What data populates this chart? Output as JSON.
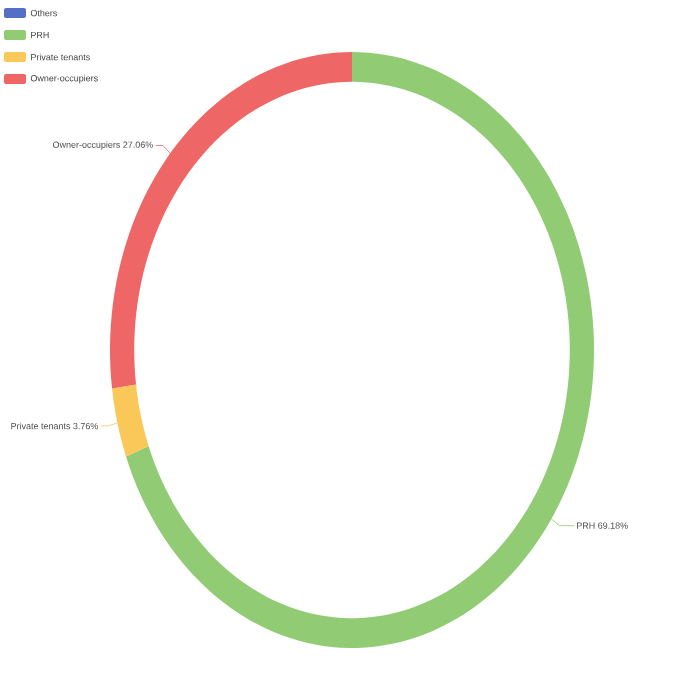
{
  "chart_data": {
    "type": "donut",
    "categories": [
      "Others",
      "PRH",
      "Private tenants",
      "Owner-occupiers"
    ],
    "values": [
      0,
      69.18,
      3.76,
      27.06
    ],
    "colors": [
      "#5470c6",
      "#91cc75",
      "#fac858",
      "#ee6666"
    ],
    "value_labels": [
      null,
      "69.18%",
      "3.76%",
      "27.06%"
    ],
    "legend": "top left"
  }
}
